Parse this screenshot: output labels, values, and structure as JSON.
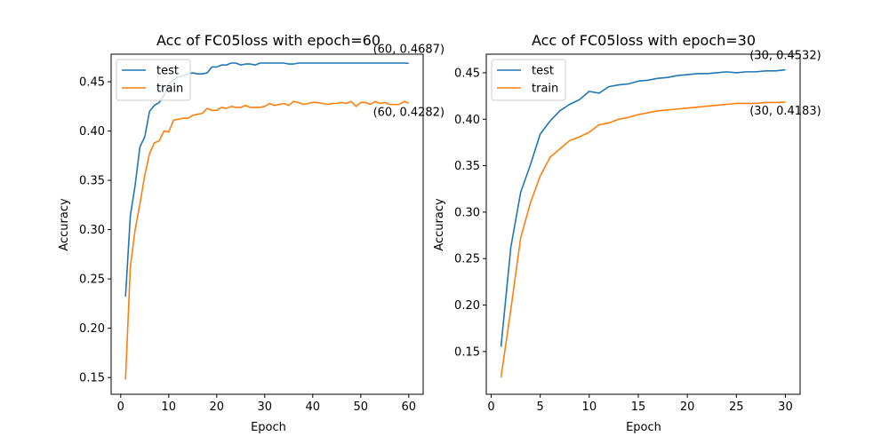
{
  "chart_data": [
    {
      "type": "line",
      "title": "Acc of FC05loss with epoch=60",
      "xlabel": "Epoch",
      "ylabel": "Accuracy",
      "xlim": [
        -2,
        63
      ],
      "ylim": [
        0.133,
        0.478
      ],
      "xticks": [
        0,
        10,
        20,
        30,
        40,
        50,
        60
      ],
      "yticks": [
        0.15,
        0.2,
        0.25,
        0.3,
        0.35,
        0.4,
        0.45
      ],
      "ytick_labels": [
        "0.15",
        "0.20",
        "0.25",
        "0.30",
        "0.35",
        "0.40",
        "0.45"
      ],
      "legend": {
        "placement": "top-left",
        "entries": [
          "test",
          "train"
        ]
      },
      "grid": false,
      "series": [
        {
          "name": "test",
          "color": "#1f77b4",
          "x": [
            1,
            2,
            3,
            4,
            5,
            6,
            7,
            8,
            9,
            10,
            11,
            12,
            13,
            14,
            15,
            16,
            17,
            18,
            19,
            20,
            21,
            22,
            23,
            24,
            25,
            26,
            27,
            28,
            29,
            30,
            31,
            32,
            33,
            34,
            35,
            36,
            37,
            38,
            39,
            40,
            41,
            42,
            43,
            44,
            45,
            46,
            47,
            48,
            49,
            50,
            51,
            52,
            53,
            54,
            55,
            56,
            57,
            58,
            59,
            60
          ],
          "values": [
            0.232,
            0.314,
            0.345,
            0.384,
            0.394,
            0.42,
            0.426,
            0.429,
            0.436,
            0.448,
            0.452,
            0.455,
            0.456,
            0.458,
            0.459,
            0.458,
            0.458,
            0.459,
            0.465,
            0.465,
            0.467,
            0.467,
            0.469,
            0.469,
            0.467,
            0.468,
            0.468,
            0.467,
            0.469,
            0.469,
            0.469,
            0.469,
            0.469,
            0.469,
            0.468,
            0.468,
            0.469,
            0.469,
            0.469,
            0.469,
            0.469,
            0.469,
            0.469,
            0.469,
            0.469,
            0.469,
            0.469,
            0.469,
            0.469,
            0.469,
            0.469,
            0.469,
            0.469,
            0.469,
            0.469,
            0.469,
            0.469,
            0.469,
            0.469,
            0.4687
          ]
        },
        {
          "name": "train",
          "color": "#ff7f0e",
          "x": [
            1,
            2,
            3,
            4,
            5,
            6,
            7,
            8,
            9,
            10,
            11,
            12,
            13,
            14,
            15,
            16,
            17,
            18,
            19,
            20,
            21,
            22,
            23,
            24,
            25,
            26,
            27,
            28,
            29,
            30,
            31,
            32,
            33,
            34,
            35,
            36,
            37,
            38,
            39,
            40,
            41,
            42,
            43,
            44,
            45,
            46,
            47,
            48,
            49,
            50,
            51,
            52,
            53,
            54,
            55,
            56,
            57,
            58,
            59,
            60
          ],
          "values": [
            0.148,
            0.262,
            0.3,
            0.326,
            0.355,
            0.377,
            0.388,
            0.39,
            0.4,
            0.399,
            0.411,
            0.412,
            0.413,
            0.413,
            0.416,
            0.417,
            0.418,
            0.423,
            0.421,
            0.421,
            0.424,
            0.423,
            0.425,
            0.424,
            0.424,
            0.426,
            0.424,
            0.424,
            0.424,
            0.425,
            0.428,
            0.426,
            0.427,
            0.428,
            0.426,
            0.43,
            0.429,
            0.427,
            0.428,
            0.429,
            0.429,
            0.428,
            0.427,
            0.428,
            0.428,
            0.429,
            0.428,
            0.43,
            0.425,
            0.429,
            0.429,
            0.427,
            0.43,
            0.428,
            0.429,
            0.427,
            0.427,
            0.427,
            0.43,
            0.4282
          ]
        }
      ],
      "annotations": [
        {
          "text": "(60, 0.4687)",
          "x": 60,
          "y": 0.4687,
          "anchor": "end",
          "dy": -12
        },
        {
          "text": "(60, 0.4282)",
          "x": 60,
          "y": 0.4282,
          "anchor": "end",
          "dy": 14
        }
      ]
    },
    {
      "type": "line",
      "title": "Acc of FC05loss with epoch=30",
      "xlabel": "Epoch",
      "ylabel": "Accuracy",
      "xlim": [
        -0.5,
        31.5
      ],
      "ylim": [
        0.104,
        0.47
      ],
      "xticks": [
        0,
        5,
        10,
        15,
        20,
        25,
        30
      ],
      "yticks": [
        0.15,
        0.2,
        0.25,
        0.3,
        0.35,
        0.4,
        0.45
      ],
      "ytick_labels": [
        "0.15",
        "0.20",
        "0.25",
        "0.30",
        "0.35",
        "0.40",
        "0.45"
      ],
      "legend": {
        "placement": "top-left",
        "entries": [
          "test",
          "train"
        ]
      },
      "grid": false,
      "series": [
        {
          "name": "test",
          "color": "#1f77b4",
          "x": [
            1,
            2,
            3,
            4,
            5,
            6,
            7,
            8,
            9,
            10,
            11,
            12,
            13,
            14,
            15,
            16,
            17,
            18,
            19,
            20,
            21,
            22,
            23,
            24,
            25,
            26,
            27,
            28,
            29,
            30
          ],
          "values": [
            0.155,
            0.262,
            0.321,
            0.351,
            0.384,
            0.398,
            0.409,
            0.416,
            0.421,
            0.43,
            0.428,
            0.435,
            0.437,
            0.438,
            0.441,
            0.442,
            0.444,
            0.445,
            0.447,
            0.448,
            0.449,
            0.449,
            0.45,
            0.451,
            0.45,
            0.451,
            0.451,
            0.452,
            0.452,
            0.4532
          ]
        },
        {
          "name": "train",
          "color": "#ff7f0e",
          "x": [
            1,
            2,
            3,
            4,
            5,
            6,
            7,
            8,
            9,
            10,
            11,
            12,
            13,
            14,
            15,
            16,
            17,
            18,
            19,
            20,
            21,
            22,
            23,
            24,
            25,
            26,
            27,
            28,
            29,
            30
          ],
          "values": [
            0.122,
            0.195,
            0.272,
            0.31,
            0.339,
            0.359,
            0.368,
            0.377,
            0.381,
            0.386,
            0.394,
            0.396,
            0.4,
            0.402,
            0.405,
            0.407,
            0.409,
            0.41,
            0.411,
            0.412,
            0.413,
            0.414,
            0.415,
            0.416,
            0.417,
            0.417,
            0.417,
            0.418,
            0.418,
            0.4183
          ]
        }
      ],
      "annotations": [
        {
          "text": "(30, 0.4532)",
          "x": 30,
          "y": 0.4532,
          "anchor": "end",
          "dy": -12
        },
        {
          "text": "(30, 0.4183)",
          "x": 30,
          "y": 0.4183,
          "anchor": "end",
          "dy": 14
        }
      ]
    }
  ]
}
